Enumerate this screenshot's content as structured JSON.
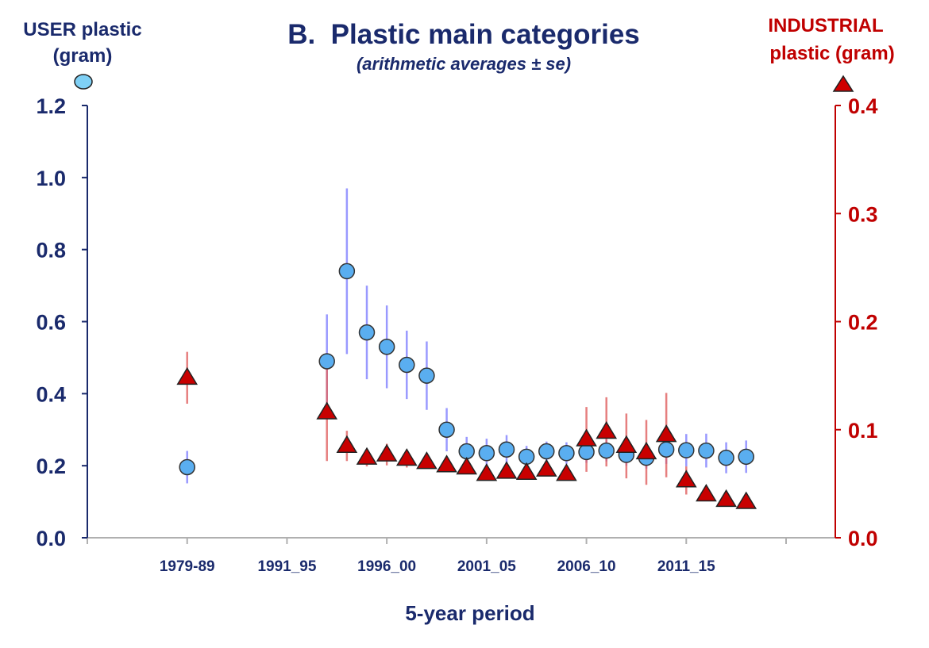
{
  "chart_data": {
    "type": "scatter",
    "title": "B.  Plastic main categories",
    "subtitle": "(arithmetic averages ± se)",
    "xlabel": "5-year period",
    "ylabel_left": [
      "USER plastic",
      "(gram)"
    ],
    "ylabel_right": [
      "INDUSTRIAL",
      "plastic (gram)"
    ],
    "xlim": [
      1981,
      2016
    ],
    "x_ticks": [
      1981,
      1986,
      1991,
      1996,
      2001,
      2006,
      2011,
      2016
    ],
    "x_tick_labels": [
      {
        "x": 1986,
        "label": "1979-89"
      },
      {
        "x": 1991,
        "label": "1991_95"
      },
      {
        "x": 1996,
        "label": "1996_00"
      },
      {
        "x": 2001,
        "label": "2001_05"
      },
      {
        "x": 2006,
        "label": "2006_10"
      },
      {
        "x": 2011,
        "label": "2011_15"
      }
    ],
    "ylim_left": [
      0,
      1.2
    ],
    "yticks_left": [
      "0.0",
      "0.2",
      "0.4",
      "0.6",
      "0.8",
      "1.0",
      "1.2"
    ],
    "ylim_right": [
      0,
      0.4
    ],
    "yticks_right": [
      "0.0",
      "0.1",
      "0.2",
      "0.3",
      "0.4"
    ],
    "colors": {
      "user": "#5aaef0",
      "user_err": "#8080ff",
      "industrial": "#c00000",
      "industrial_err": "#e06060",
      "axis_left": "#1a2a6c",
      "axis_right": "#c00000",
      "title": "#1a2a6c"
    },
    "series": [
      {
        "name": "USER plastic",
        "axis": "left",
        "marker": "circle",
        "x": [
          1986,
          1993,
          1994,
          1995,
          1996,
          1997,
          1998,
          1999,
          2000,
          2001,
          2002,
          2003,
          2004,
          2005,
          2006,
          2007,
          2008,
          2009,
          2010,
          2011,
          2012,
          2013,
          2014
        ],
        "y": [
          0.196,
          0.49,
          0.74,
          0.57,
          0.53,
          0.48,
          0.45,
          0.3,
          0.24,
          0.235,
          0.245,
          0.225,
          0.24,
          0.235,
          0.238,
          0.242,
          0.23,
          0.222,
          0.245,
          0.243,
          0.242,
          0.222,
          0.225
        ],
        "se": [
          0.045,
          0.13,
          0.23,
          0.13,
          0.115,
          0.095,
          0.095,
          0.06,
          0.04,
          0.04,
          0.04,
          0.03,
          0.027,
          0.03,
          0.03,
          0.03,
          0.03,
          0.03,
          0.04,
          0.045,
          0.047,
          0.043,
          0.045
        ]
      },
      {
        "name": "INDUSTRIAL plastic",
        "axis": "right",
        "marker": "triangle",
        "x": [
          1986,
          1993,
          1994,
          1995,
          1996,
          1997,
          1998,
          1999,
          2000,
          2001,
          2002,
          2003,
          2004,
          2005,
          2006,
          2007,
          2008,
          2009,
          2010,
          2011,
          2012,
          2013,
          2014
        ],
        "y": [
          0.148,
          0.116,
          0.085,
          0.074,
          0.077,
          0.073,
          0.07,
          0.067,
          0.065,
          0.059,
          0.061,
          0.06,
          0.063,
          0.059,
          0.091,
          0.098,
          0.085,
          0.079,
          0.095,
          0.053,
          0.04,
          0.035,
          0.033
        ],
        "se": [
          0.024,
          0.045,
          0.014,
          0.008,
          0.01,
          0.008,
          0.006,
          0.005,
          0.004,
          0.004,
          0.004,
          0.004,
          0.005,
          0.004,
          0.03,
          0.032,
          0.03,
          0.03,
          0.039,
          0.013,
          0.003,
          0.003,
          0.003
        ]
      }
    ]
  }
}
